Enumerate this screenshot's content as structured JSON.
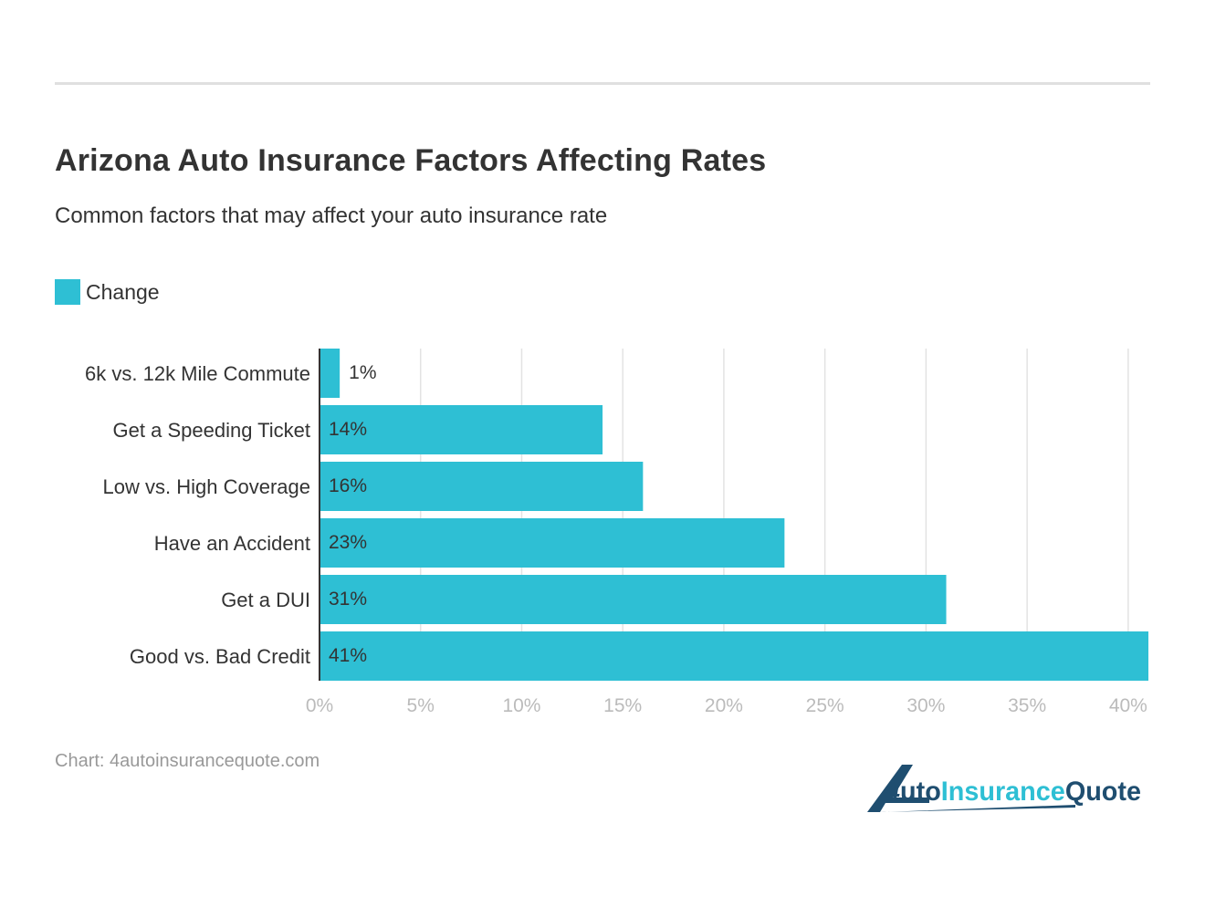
{
  "title": "Arizona Auto Insurance Factors Affecting Rates",
  "subtitle": "Common factors that may affect your auto insurance rate",
  "source": "Chart: 4autoinsurancequote.com",
  "logo_text": "4AutoInsuranceQuote",
  "colors": {
    "bar": "#2ebfd4",
    "logo_dark": "#1f4e70",
    "logo_light": "#2ebfd4"
  },
  "chart_data": {
    "type": "bar",
    "orientation": "horizontal",
    "title": "Arizona Auto Insurance Factors Affecting Rates",
    "subtitle": "Common factors that may affect your auto insurance rate",
    "categories": [
      "6k vs. 12k Mile Commute",
      "Get a Speeding Ticket",
      "Low vs. High Coverage",
      "Have an Accident",
      "Get a DUI",
      "Good vs. Bad Credit"
    ],
    "series": [
      {
        "name": "Change",
        "values": [
          1,
          14,
          16,
          23,
          31,
          41
        ],
        "labels": [
          "1%",
          "14%",
          "16%",
          "23%",
          "31%",
          "41%"
        ]
      }
    ],
    "xlim": [
      0,
      41
    ],
    "xticks": [
      "0%",
      "5%",
      "10%",
      "15%",
      "20%",
      "25%",
      "30%",
      "35%",
      "40%"
    ],
    "xtick_values": [
      0,
      5,
      10,
      15,
      20,
      25,
      30,
      35,
      40
    ],
    "grid": "vertical",
    "legend": "top-left"
  }
}
